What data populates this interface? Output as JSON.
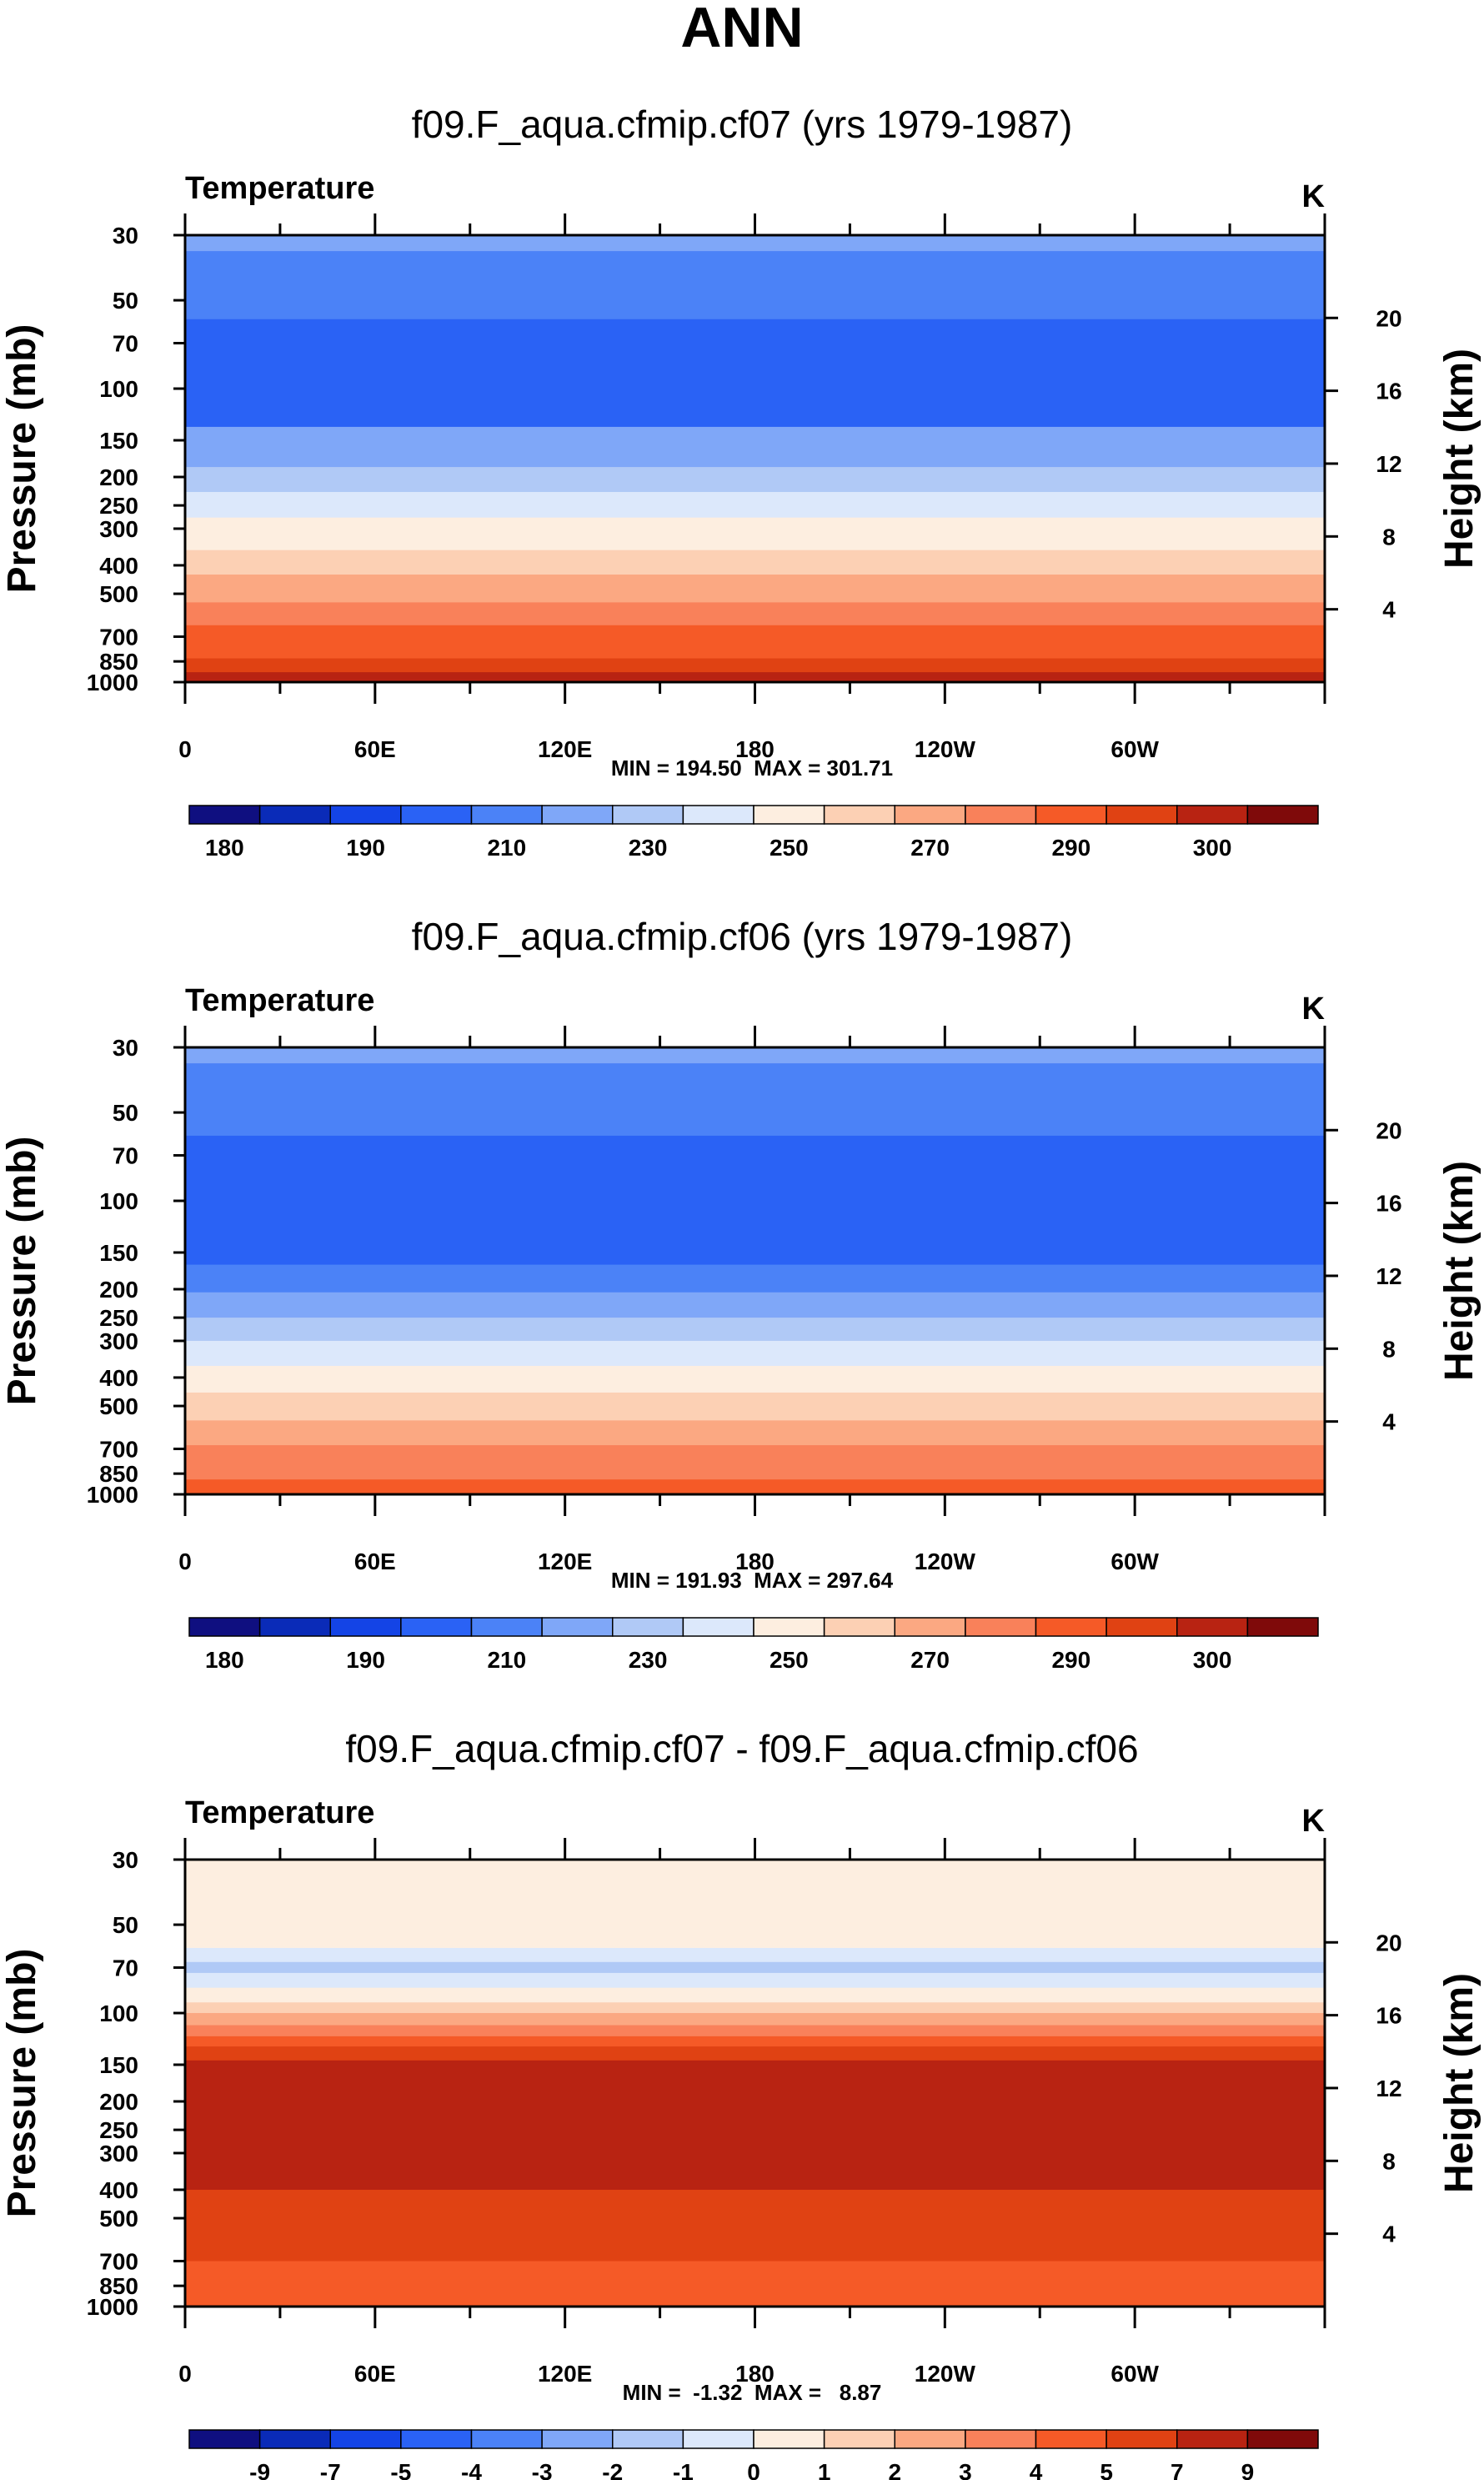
{
  "main_title": "ANN",
  "chart_data": [
    {
      "type": "heatmap",
      "title": "f09.F_aqua.cfmip.cf07 (yrs 1979-1987)",
      "variable": "Temperature",
      "units": "K",
      "xlabel": "",
      "ylabel": "Pressure (mb)",
      "ylabel_right": "Height (km)",
      "x_ticks": [
        "0",
        "60E",
        "120E",
        "180",
        "120W",
        "60W"
      ],
      "x_tick_values": [
        0,
        60,
        120,
        180,
        240,
        300
      ],
      "xlim": [
        0,
        360
      ],
      "y_scale": "log",
      "y_ticks": [
        30,
        50,
        70,
        100,
        150,
        200,
        250,
        300,
        400,
        500,
        700,
        850,
        1000
      ],
      "ylim": [
        30,
        1000
      ],
      "y_right_ticks": [
        20,
        16,
        12,
        8,
        4
      ],
      "min": 194.5,
      "max": 301.71,
      "minmax_text": "MIN = 194.50  MAX = 301.71",
      "colorbar_labels": [
        "180",
        "190",
        "210",
        "230",
        "250",
        "270",
        "290",
        "300"
      ],
      "bands": [
        {
          "p_top": 30,
          "p_bottom": 34,
          "level": 5
        },
        {
          "p_top": 34,
          "p_bottom": 58,
          "level": 4
        },
        {
          "p_top": 58,
          "p_bottom": 135,
          "level": 3
        },
        {
          "p_top": 135,
          "p_bottom": 185,
          "level": 5
        },
        {
          "p_top": 185,
          "p_bottom": 225,
          "level": 6
        },
        {
          "p_top": 225,
          "p_bottom": 275,
          "level": 7
        },
        {
          "p_top": 275,
          "p_bottom": 355,
          "level": 8
        },
        {
          "p_top": 355,
          "p_bottom": 430,
          "level": 9
        },
        {
          "p_top": 430,
          "p_bottom": 535,
          "level": 10
        },
        {
          "p_top": 535,
          "p_bottom": 640,
          "level": 11
        },
        {
          "p_top": 640,
          "p_bottom": 830,
          "level": 12
        },
        {
          "p_top": 830,
          "p_bottom": 925,
          "level": 13
        },
        {
          "p_top": 925,
          "p_bottom": 1000,
          "level": 14
        }
      ]
    },
    {
      "type": "heatmap",
      "title": "f09.F_aqua.cfmip.cf06 (yrs 1979-1987)",
      "variable": "Temperature",
      "units": "K",
      "xlabel": "",
      "ylabel": "Pressure (mb)",
      "ylabel_right": "Height (km)",
      "x_ticks": [
        "0",
        "60E",
        "120E",
        "180",
        "120W",
        "60W"
      ],
      "x_tick_values": [
        0,
        60,
        120,
        180,
        240,
        300
      ],
      "xlim": [
        0,
        360
      ],
      "y_scale": "log",
      "y_ticks": [
        30,
        50,
        70,
        100,
        150,
        200,
        250,
        300,
        400,
        500,
        700,
        850,
        1000
      ],
      "ylim": [
        30,
        1000
      ],
      "y_right_ticks": [
        20,
        16,
        12,
        8,
        4
      ],
      "min": 191.93,
      "max": 297.64,
      "minmax_text": "MIN = 191.93  MAX = 297.64",
      "colorbar_labels": [
        "180",
        "190",
        "210",
        "230",
        "250",
        "270",
        "290",
        "300"
      ],
      "bands": [
        {
          "p_top": 30,
          "p_bottom": 34,
          "level": 5
        },
        {
          "p_top": 34,
          "p_bottom": 60,
          "level": 4
        },
        {
          "p_top": 60,
          "p_bottom": 165,
          "level": 3
        },
        {
          "p_top": 165,
          "p_bottom": 205,
          "level": 4
        },
        {
          "p_top": 205,
          "p_bottom": 250,
          "level": 5
        },
        {
          "p_top": 250,
          "p_bottom": 300,
          "level": 6
        },
        {
          "p_top": 300,
          "p_bottom": 365,
          "level": 7
        },
        {
          "p_top": 365,
          "p_bottom": 450,
          "level": 8
        },
        {
          "p_top": 450,
          "p_bottom": 560,
          "level": 9
        },
        {
          "p_top": 560,
          "p_bottom": 680,
          "level": 10
        },
        {
          "p_top": 680,
          "p_bottom": 890,
          "level": 11
        },
        {
          "p_top": 890,
          "p_bottom": 1000,
          "level": 12
        }
      ]
    },
    {
      "type": "heatmap",
      "title": "f09.F_aqua.cfmip.cf07 - f09.F_aqua.cfmip.cf06",
      "variable": "Temperature",
      "units": "K",
      "xlabel": "",
      "ylabel": "Pressure (mb)",
      "ylabel_right": "Height (km)",
      "x_ticks": [
        "0",
        "60E",
        "120E",
        "180",
        "120W",
        "60W"
      ],
      "x_tick_values": [
        0,
        60,
        120,
        180,
        240,
        300
      ],
      "xlim": [
        0,
        360
      ],
      "y_scale": "log",
      "y_ticks": [
        30,
        50,
        70,
        100,
        150,
        200,
        250,
        300,
        400,
        500,
        700,
        850,
        1000
      ],
      "ylim": [
        30,
        1000
      ],
      "y_right_ticks": [
        20,
        16,
        12,
        8,
        4
      ],
      "min": -1.32,
      "max": 8.87,
      "minmax_text": "MIN =  -1.32  MAX =   8.87",
      "colorbar_labels": [
        "-9",
        "-7",
        "-5",
        "-4",
        "-3",
        "-2",
        "-1",
        "0",
        "1",
        "2",
        "3",
        "4",
        "5",
        "7",
        "9"
      ],
      "bands": [
        {
          "p_top": 30,
          "p_bottom": 60,
          "level": 8
        },
        {
          "p_top": 60,
          "p_bottom": 67,
          "level": 7
        },
        {
          "p_top": 67,
          "p_bottom": 73,
          "level": 6
        },
        {
          "p_top": 73,
          "p_bottom": 82,
          "level": 7
        },
        {
          "p_top": 82,
          "p_bottom": 92,
          "level": 8
        },
        {
          "p_top": 92,
          "p_bottom": 100,
          "level": 9
        },
        {
          "p_top": 100,
          "p_bottom": 110,
          "level": 10
        },
        {
          "p_top": 110,
          "p_bottom": 120,
          "level": 11
        },
        {
          "p_top": 120,
          "p_bottom": 130,
          "level": 12
        },
        {
          "p_top": 130,
          "p_bottom": 145,
          "level": 13
        },
        {
          "p_top": 145,
          "p_bottom": 400,
          "level": 14
        },
        {
          "p_top": 400,
          "p_bottom": 700,
          "level": 13
        },
        {
          "p_top": 700,
          "p_bottom": 1000,
          "level": 12
        }
      ]
    }
  ],
  "colormap": [
    "#0f0f80",
    "#0a2bb8",
    "#1444e6",
    "#2a62f5",
    "#4b82f7",
    "#7fa7f8",
    "#b0c9f6",
    "#dce8fb",
    "#fdeee0",
    "#fcd0b4",
    "#fba882",
    "#f9815a",
    "#f55a27",
    "#e04213",
    "#b82312",
    "#7f0a0a"
  ]
}
